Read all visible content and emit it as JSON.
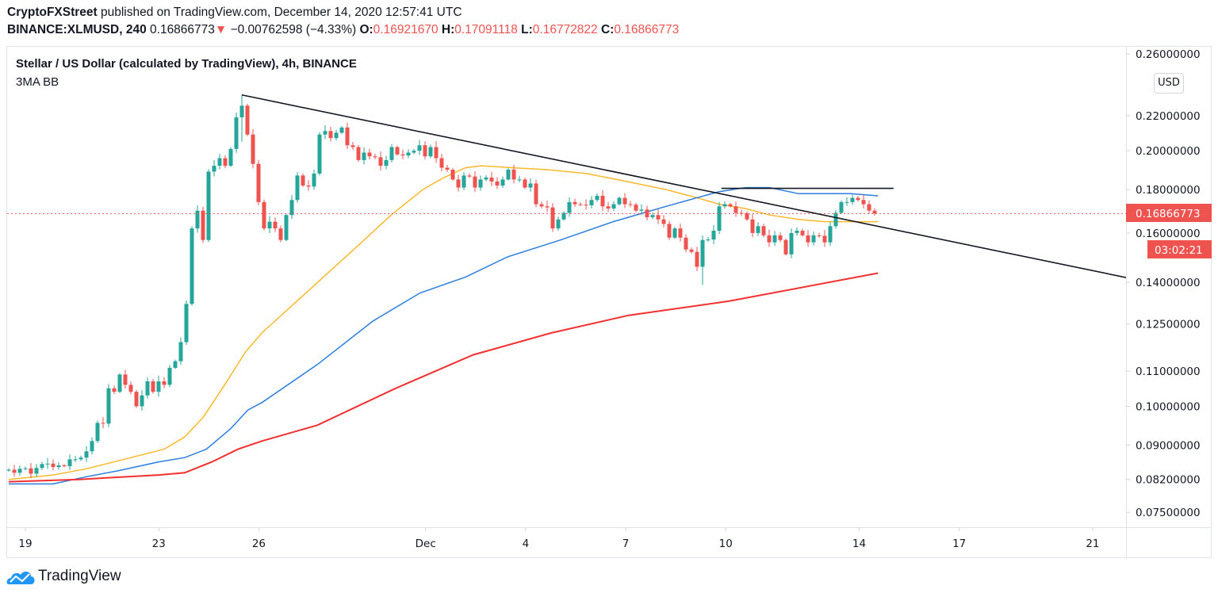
{
  "header": {
    "author": "CryptoFXStreet",
    "published": "published on TradingView.com, December 14, 2020 12:57:41 UTC",
    "symbol": "BINANCE:XLMUSD, 240",
    "last": "0.16866773",
    "change": "−0.00762598 (−4.33%)",
    "o_label": "O:",
    "o": "0.16921670",
    "h_label": "H:",
    "h": "0.17091118",
    "l_label": "L:",
    "l": "0.16772822",
    "c_label": "C:",
    "c": "0.16866773"
  },
  "legend": {
    "title": "Stellar / US Dollar (calculated by TradingView), 4h, BINANCE",
    "indicator": "3MA BB"
  },
  "currency_badge": "USD",
  "footer": {
    "brand": "TradingView"
  },
  "colors": {
    "up": "#26a69a",
    "down": "#ef5350",
    "ma_fast": "#fbb82b",
    "ma_mid": "#2b7de0",
    "ma_slow": "#f23030",
    "trendline": "#131722"
  },
  "chart_data": {
    "type": "candlestick",
    "scale": "log",
    "interval": "4h",
    "ylim": [
      0.0725,
      0.265
    ],
    "y_ticks": [
      "0.26000000",
      "0.22000000",
      "0.20000000",
      "0.18000000",
      "0.16000000",
      "0.14000000",
      "0.12500000",
      "0.11000000",
      "0.10000000",
      "0.09000000",
      "0.08200000",
      "0.07500000"
    ],
    "x_ticks": [
      {
        "label": "19",
        "day": 0
      },
      {
        "label": "23",
        "day": 4
      },
      {
        "label": "26",
        "day": 7
      },
      {
        "label": "Dec",
        "day": 12
      },
      {
        "label": "4",
        "day": 15
      },
      {
        "label": "7",
        "day": 18
      },
      {
        "label": "10",
        "day": 21
      },
      {
        "label": "14",
        "day": 25
      },
      {
        "label": "17",
        "day": 28
      },
      {
        "label": "21",
        "day": 32
      }
    ],
    "first_open": 0.084,
    "closes": [
      0.0842,
      0.0835,
      0.0844,
      0.0845,
      0.0833,
      0.0846,
      0.0855,
      0.0856,
      0.0848,
      0.0852,
      0.085,
      0.0866,
      0.0866,
      0.087,
      0.0885,
      0.091,
      0.0956,
      0.0954,
      0.105,
      0.104,
      0.109,
      0.106,
      0.104,
      0.1,
      0.103,
      0.107,
      0.104,
      0.107,
      0.106,
      0.111,
      0.113,
      0.119,
      0.132,
      0.162,
      0.17,
      0.157,
      0.189,
      0.192,
      0.196,
      0.192,
      0.201,
      0.219,
      0.226,
      0.209,
      0.193,
      0.174,
      0.162,
      0.165,
      0.162,
      0.157,
      0.168,
      0.175,
      0.187,
      0.182,
      0.1815,
      0.188,
      0.209,
      0.211,
      0.207,
      0.21,
      0.213,
      0.203,
      0.202,
      0.195,
      0.199,
      0.197,
      0.1965,
      0.192,
      0.195,
      0.202,
      0.198,
      0.1975,
      0.199,
      0.2,
      0.203,
      0.197,
      0.202,
      0.196,
      0.191,
      0.19,
      0.185,
      0.181,
      0.187,
      0.1865,
      0.181,
      0.185,
      0.186,
      0.184,
      0.182,
      0.185,
      0.19,
      0.185,
      0.185,
      0.181,
      0.183,
      0.173,
      0.172,
      0.1715,
      0.162,
      0.166,
      0.169,
      0.174,
      0.173,
      0.1728,
      0.1725,
      0.175,
      0.177,
      0.172,
      0.171,
      0.173,
      0.176,
      0.173,
      0.1728,
      0.17,
      0.1705,
      0.167,
      0.168,
      0.166,
      0.164,
      0.158,
      0.162,
      0.158,
      0.153,
      0.152,
      0.146,
      0.157,
      0.1572,
      0.161,
      0.172,
      0.173,
      0.172,
      0.169,
      0.1688,
      0.166,
      0.16,
      0.163,
      0.159,
      0.156,
      0.159,
      0.157,
      0.151,
      0.16,
      0.161,
      0.159,
      0.156,
      0.159,
      0.1588,
      0.156,
      0.163,
      0.169,
      0.174,
      0.174,
      0.176,
      0.175,
      0.173,
      0.17,
      0.16866773
    ],
    "wick_overrides": {
      "42": [
        0.2327,
        0.205
      ],
      "125": [
        0.159,
        0.139
      ]
    },
    "moving_averages": [
      {
        "name": "MA fast",
        "color": "#fbb82b",
        "points": [
          [
            0,
            0.082
          ],
          [
            8,
            0.083
          ],
          [
            14,
            0.0844
          ],
          [
            22,
            0.087
          ],
          [
            28,
            0.089
          ],
          [
            31.7,
            0.092
          ],
          [
            35,
            0.097
          ],
          [
            38.9,
            0.106
          ],
          [
            42.7,
            0.116
          ],
          [
            45.6,
            0.122
          ],
          [
            56.7,
            0.142
          ],
          [
            63.1,
            0.155
          ],
          [
            68.9,
            0.168
          ],
          [
            74.6,
            0.18
          ],
          [
            78.4,
            0.186
          ],
          [
            82.3,
            0.191
          ],
          [
            85.1,
            0.192
          ],
          [
            90.9,
            0.191
          ],
          [
            97,
            0.19
          ],
          [
            104.1,
            0.188
          ],
          [
            111.3,
            0.184
          ],
          [
            118.4,
            0.18
          ],
          [
            124.1,
            0.176
          ],
          [
            128,
            0.173
          ],
          [
            132.7,
            0.171
          ],
          [
            137.1,
            0.168
          ],
          [
            142.3,
            0.166
          ],
          [
            147,
            0.165
          ],
          [
            156.6,
            0.165
          ]
        ]
      },
      {
        "name": "MA mid",
        "color": "#2b7de0",
        "points": [
          [
            0,
            0.081
          ],
          [
            8,
            0.081
          ],
          [
            14,
            0.0826
          ],
          [
            19.9,
            0.084
          ],
          [
            27,
            0.086
          ],
          [
            31.7,
            0.087
          ],
          [
            35.6,
            0.089
          ],
          [
            39.9,
            0.094
          ],
          [
            43.1,
            0.099
          ],
          [
            45.6,
            0.101
          ],
          [
            55.6,
            0.112
          ],
          [
            65.6,
            0.126
          ],
          [
            74.1,
            0.136
          ],
          [
            82.3,
            0.142
          ],
          [
            89.9,
            0.15
          ],
          [
            99.4,
            0.157
          ],
          [
            108.9,
            0.165
          ],
          [
            118.4,
            0.172
          ],
          [
            128,
            0.179
          ],
          [
            132.7,
            0.181
          ],
          [
            137.1,
            0.181
          ],
          [
            142.3,
            0.178
          ],
          [
            151.7,
            0.178
          ],
          [
            156.6,
            0.177
          ]
        ]
      },
      {
        "name": "MA slow",
        "color": "#f23030",
        "points": [
          [
            0,
            0.0815
          ],
          [
            12.7,
            0.082
          ],
          [
            27,
            0.083
          ],
          [
            31.7,
            0.0835
          ],
          [
            36.6,
            0.086
          ],
          [
            41.3,
            0.089
          ],
          [
            45.6,
            0.091
          ],
          [
            55.6,
            0.095
          ],
          [
            69.7,
            0.105
          ],
          [
            83.7,
            0.115
          ],
          [
            97.7,
            0.122
          ],
          [
            111.7,
            0.128
          ],
          [
            129.7,
            0.133
          ],
          [
            156.6,
            0.1435
          ]
        ]
      }
    ],
    "trendline": {
      "from": [
        42,
        0.2327
      ],
      "to": [
        201.3,
        0.1418
      ]
    },
    "resistance": {
      "from": [
        128.4,
        0.1806
      ],
      "to": [
        159.4,
        0.1806
      ]
    },
    "last_price": 0.16866773,
    "last_price_label": "0.16866773",
    "countdown": "03:02:21"
  }
}
